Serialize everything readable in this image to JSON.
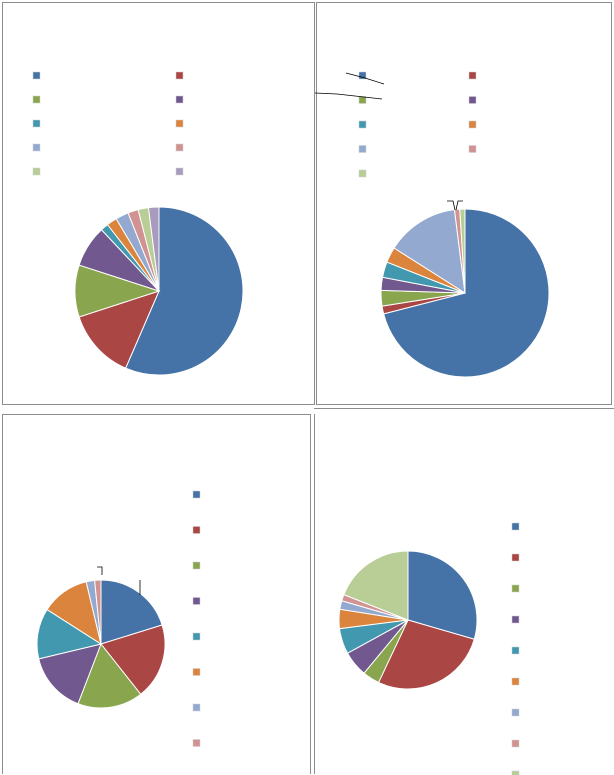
{
  "chart_data": [
    {
      "type": "pie",
      "title": "",
      "legend": "top",
      "series": [
        {
          "values": [
            56.5,
            13.5,
            10.0,
            8.0,
            1.5,
            2.0,
            2.5,
            2.0,
            2.0,
            2.0
          ],
          "colors": [
            "#4572A7",
            "#AA4643",
            "#89A54E",
            "#71588F",
            "#4198AF",
            "#DB843D",
            "#93A9CF",
            "#D19392",
            "#B9CD96",
            "#A99BBD"
          ]
        }
      ]
    },
    {
      "type": "pie",
      "title": "",
      "legend": "top",
      "series": [
        {
          "values": [
            71.0,
            1.5,
            3.0,
            2.5,
            3.0,
            3.0,
            14.0,
            1.0,
            1.0
          ],
          "colors": [
            "#4572A7",
            "#AA4643",
            "#89A54E",
            "#71588F",
            "#4198AF",
            "#DB843D",
            "#93A9CF",
            "#D19392",
            "#B9CD96"
          ]
        }
      ]
    },
    {
      "type": "pie",
      "title": "",
      "legend": "right",
      "series": [
        {
          "values": [
            19.0,
            18.0,
            15.5,
            14.5,
            12.0,
            11.5,
            2.0,
            1.5
          ],
          "colors": [
            "#4572A7",
            "#AA4643",
            "#89A54E",
            "#71588F",
            "#4198AF",
            "#DB843D",
            "#93A9CF",
            "#D19392"
          ]
        }
      ]
    },
    {
      "type": "pie",
      "title": "",
      "legend": "right",
      "series": [
        {
          "values": [
            29.5,
            27.5,
            4.0,
            6.0,
            6.0,
            4.5,
            2.0,
            1.5,
            19.0
          ],
          "colors": [
            "#4572A7",
            "#AA4643",
            "#89A54E",
            "#71588F",
            "#4198AF",
            "#DB843D",
            "#93A9CF",
            "#D19392",
            "#B9CD96"
          ]
        }
      ]
    }
  ]
}
